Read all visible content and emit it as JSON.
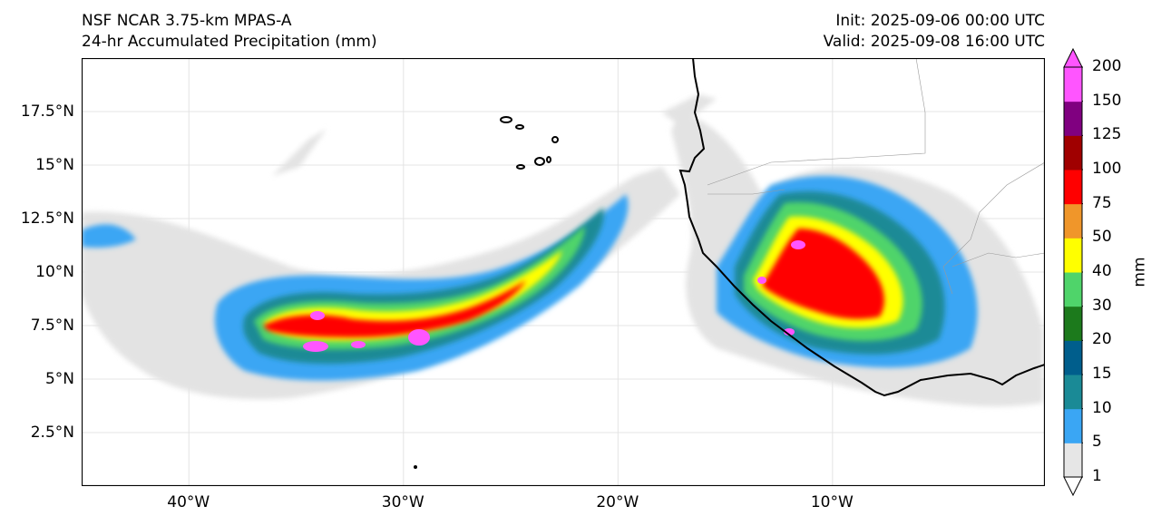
{
  "header": {
    "model": "NSF NCAR 3.75-km MPAS-A",
    "field": "24-hr Accumulated Precipitation (mm)",
    "init": "Init: 2025-09-06 00:00 UTC",
    "valid": "Valid: 2025-09-08 16:00 UTC"
  },
  "axes": {
    "lat_ticks": [
      "2.5°N",
      "5°N",
      "7.5°N",
      "10°N",
      "12.5°N",
      "15°N",
      "17.5°N"
    ],
    "lat_values": [
      2.5,
      5,
      7.5,
      10,
      12.5,
      15,
      17.5
    ],
    "lon_ticks": [
      "40°W",
      "30°W",
      "20°W",
      "10°W"
    ],
    "lon_values": [
      -40,
      -30,
      -20,
      -10
    ],
    "lat_range": [
      0,
      20
    ],
    "lon_range": [
      -45,
      -0.1
    ]
  },
  "colorbar": {
    "units": "mm",
    "levels": [
      "1",
      "5",
      "10",
      "15",
      "20",
      "30",
      "40",
      "50",
      "75",
      "100",
      "125",
      "150",
      "200"
    ],
    "colors": [
      "#e6e6e6",
      "#3aa6f4",
      "#1a8a96",
      "#005e8c",
      "#1c7a1c",
      "#4fd46a",
      "#ffff00",
      "#f0962a",
      "#ff0000",
      "#a00000",
      "#800080",
      "#ff55ff"
    ]
  }
}
